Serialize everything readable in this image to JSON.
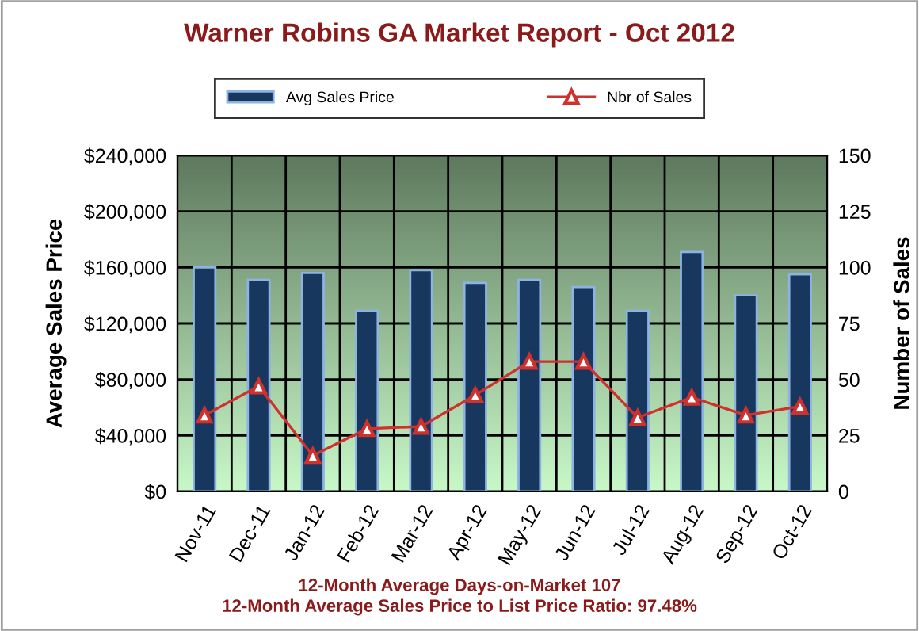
{
  "chart_data": {
    "type": "bar",
    "title": "Warner Robins GA Market Report - Oct 2012",
    "categories": [
      "Nov-11",
      "Dec-11",
      "Jan-12",
      "Feb-12",
      "Mar-12",
      "Apr-12",
      "May-12",
      "Jun-12",
      "Jul-12",
      "Aug-12",
      "Sep-12",
      "Oct-12"
    ],
    "series": [
      {
        "name": "Avg Sales Price",
        "color": "#17375e",
        "values": [
          160000,
          151000,
          156000,
          129000,
          158000,
          149000,
          151000,
          146000,
          129000,
          171000,
          140000,
          155000
        ]
      },
      {
        "name": "Nbr of Sales",
        "type": "line",
        "axis": "y2",
        "color": "#d0312d",
        "marker": "triangle",
        "values": [
          34,
          47,
          16,
          28,
          29,
          43,
          58,
          58,
          33,
          42,
          34,
          38
        ]
      }
    ],
    "ylabel": "Average Sales Price",
    "y2label": "Number of Sales",
    "ylim": [
      0,
      240000
    ],
    "yticks": [
      {
        "value": 0,
        "label": "$0"
      },
      {
        "value": 40000,
        "label": "$40,000"
      },
      {
        "value": 80000,
        "label": "$80,000"
      },
      {
        "value": 120000,
        "label": "$120,000"
      },
      {
        "value": 160000,
        "label": "$160,000"
      },
      {
        "value": 200000,
        "label": "$200,000"
      },
      {
        "value": 240000,
        "label": "$240,000"
      }
    ],
    "y2lim": [
      0,
      150
    ],
    "y2ticks": [
      0,
      25,
      50,
      75,
      100,
      125,
      150
    ],
    "grid": true,
    "legend": "top",
    "annotations": [
      "12-Month Average Days-on-Market 107",
      "12-Month Average Sales Price to List Price Ratio: 97.48%"
    ]
  }
}
